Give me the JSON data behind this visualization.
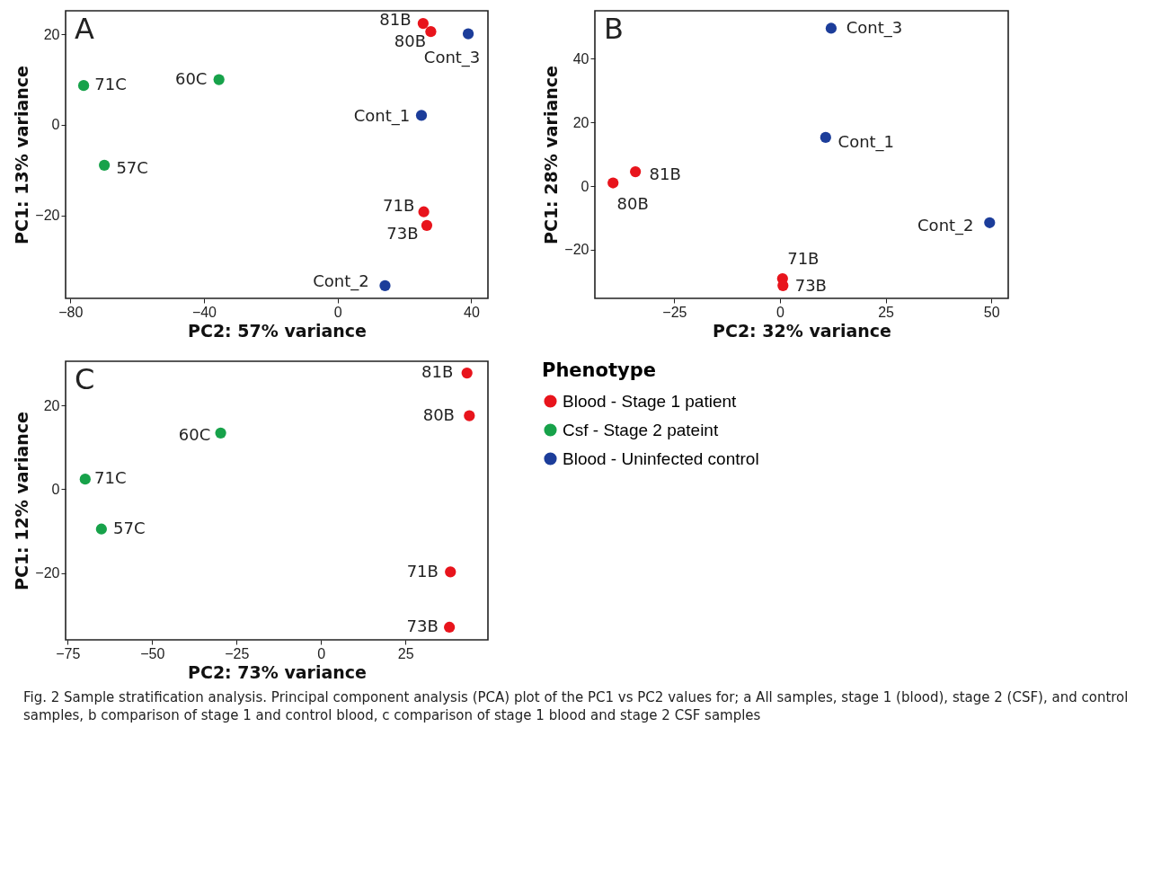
{
  "chart_data": [
    {
      "type": "scatter",
      "title": "A",
      "xlabel": "PC2: 57% variance",
      "ylabel": "PC1: 13% variance",
      "xlim": [
        -81.4,
        45
      ],
      "ylim": [
        -38.3,
        25.2
      ],
      "xticks": [
        -80,
        -40,
        0,
        40
      ],
      "yticks": [
        -20,
        0,
        20
      ],
      "grid": false,
      "legend": false,
      "marker": "circle",
      "series": [
        {
          "color": "#e8141c",
          "x": [
            25.6,
            27.9,
            25.8,
            26.7
          ],
          "values": [
            22.4,
            20.6,
            -19.2,
            -22.2
          ]
        },
        {
          "color": "#17a24a",
          "x": [
            -35.5,
            -76.0,
            -69.8
          ],
          "values": [
            10.0,
            8.7,
            -8.9
          ]
        },
        {
          "color": "#1c3d9a",
          "x": [
            39.1,
            25.1,
            14.2
          ],
          "values": [
            20.1,
            2.1,
            -35.5
          ]
        }
      ],
      "annotations": [
        {
          "text": "81B",
          "x": 25.6,
          "y": 22.4
        },
        {
          "text": "80B",
          "x": 27.9,
          "y": 20.6
        },
        {
          "text": "Cont_3",
          "x": 39.1,
          "y": 20.1
        },
        {
          "text": "60C",
          "x": -35.5,
          "y": 10.0
        },
        {
          "text": "71C",
          "x": -76.0,
          "y": 8.7
        },
        {
          "text": "Cont_1",
          "x": 25.1,
          "y": 2.1
        },
        {
          "text": "57C",
          "x": -69.8,
          "y": -8.9
        },
        {
          "text": "71B",
          "x": 25.8,
          "y": -19.2
        },
        {
          "text": "73B",
          "x": 26.7,
          "y": -22.2
        },
        {
          "text": "Cont_2",
          "x": 14.2,
          "y": -35.5
        }
      ]
    },
    {
      "type": "scatter",
      "title": "B",
      "xlabel": "PC2: 32% variance",
      "ylabel": "PC1: 28% variance",
      "xlim": [
        -43.8,
        54
      ],
      "ylim": [
        -35.3,
        55.1
      ],
      "xticks": [
        -25,
        0,
        25,
        50
      ],
      "yticks": [
        -20,
        0,
        20,
        40
      ],
      "grid": false,
      "legend": false,
      "marker": "circle",
      "series": [
        {
          "color": "#e8141c",
          "x": [
            -34.2,
            -39.5,
            0.6,
            0.7
          ],
          "values": [
            4.5,
            1.0,
            -29.1,
            -31.3
          ]
        },
        {
          "color": "#1c3d9a",
          "x": [
            12.1,
            10.8,
            49.6
          ],
          "values": [
            49.6,
            15.3,
            -11.5
          ]
        }
      ],
      "annotations": [
        {
          "text": "81B",
          "x": -34.2,
          "y": 4.5
        },
        {
          "text": "80B",
          "x": -39.5,
          "y": 1.0
        },
        {
          "text": "Cont_3",
          "x": 12.1,
          "y": 49.6
        },
        {
          "text": "Cont_1",
          "x": 10.8,
          "y": 15.3
        },
        {
          "text": "Cont_2",
          "x": 49.6,
          "y": -11.5
        },
        {
          "text": "71B",
          "x": 0.6,
          "y": -29.1
        },
        {
          "text": "73B",
          "x": 0.7,
          "y": -31.3
        }
      ]
    },
    {
      "type": "scatter",
      "title": "C",
      "xlabel": "PC2: 73% variance",
      "ylabel": "PC1: 12% variance",
      "xlim": [
        -75.6,
        49.4
      ],
      "ylim": [
        -35.9,
        30.5
      ],
      "xticks": [
        -75,
        -50,
        -25,
        0,
        25
      ],
      "yticks": [
        -20,
        0,
        20
      ],
      "grid": false,
      "legend": "right",
      "legend_title": "Phenotype",
      "marker": "circle",
      "series": [
        {
          "name": "Blood - Stage 1 patient",
          "color": "#e8141c",
          "x": [
            43.2,
            43.9,
            38.3,
            38.0
          ],
          "values": [
            27.7,
            17.5,
            -19.7,
            -32.9
          ]
        },
        {
          "name": "Csf - Stage 2 pateint",
          "color": "#17a24a",
          "x": [
            -29.7,
            -69.8,
            -65.0
          ],
          "values": [
            13.4,
            2.4,
            -9.5
          ]
        },
        {
          "name": "Blood - Uninfected control",
          "color": "#1c3d9a"
        }
      ],
      "annotations": [
        {
          "text": "81B",
          "x": 43.2,
          "y": 27.7
        },
        {
          "text": "80B",
          "x": 43.9,
          "y": 17.5
        },
        {
          "text": "60C",
          "x": -29.7,
          "y": 13.4
        },
        {
          "text": "71C",
          "x": -69.8,
          "y": 2.4
        },
        {
          "text": "57C",
          "x": -65.0,
          "y": -9.5
        },
        {
          "text": "71B",
          "x": 38.3,
          "y": -19.7
        },
        {
          "text": "73B",
          "x": 38.0,
          "y": -32.9
        },
        "Fig. 2 Sample stratification analysis. Principal component analysis (PCA) plot of the PC1 vs PC2 values for; a All samples, stage 1 (blood), stage 2 (CSF), and control samples, b comparison of stage 1 and control blood, c comparison of stage 1 blood and stage 2 CSF samples"
      ]
    }
  ]
}
